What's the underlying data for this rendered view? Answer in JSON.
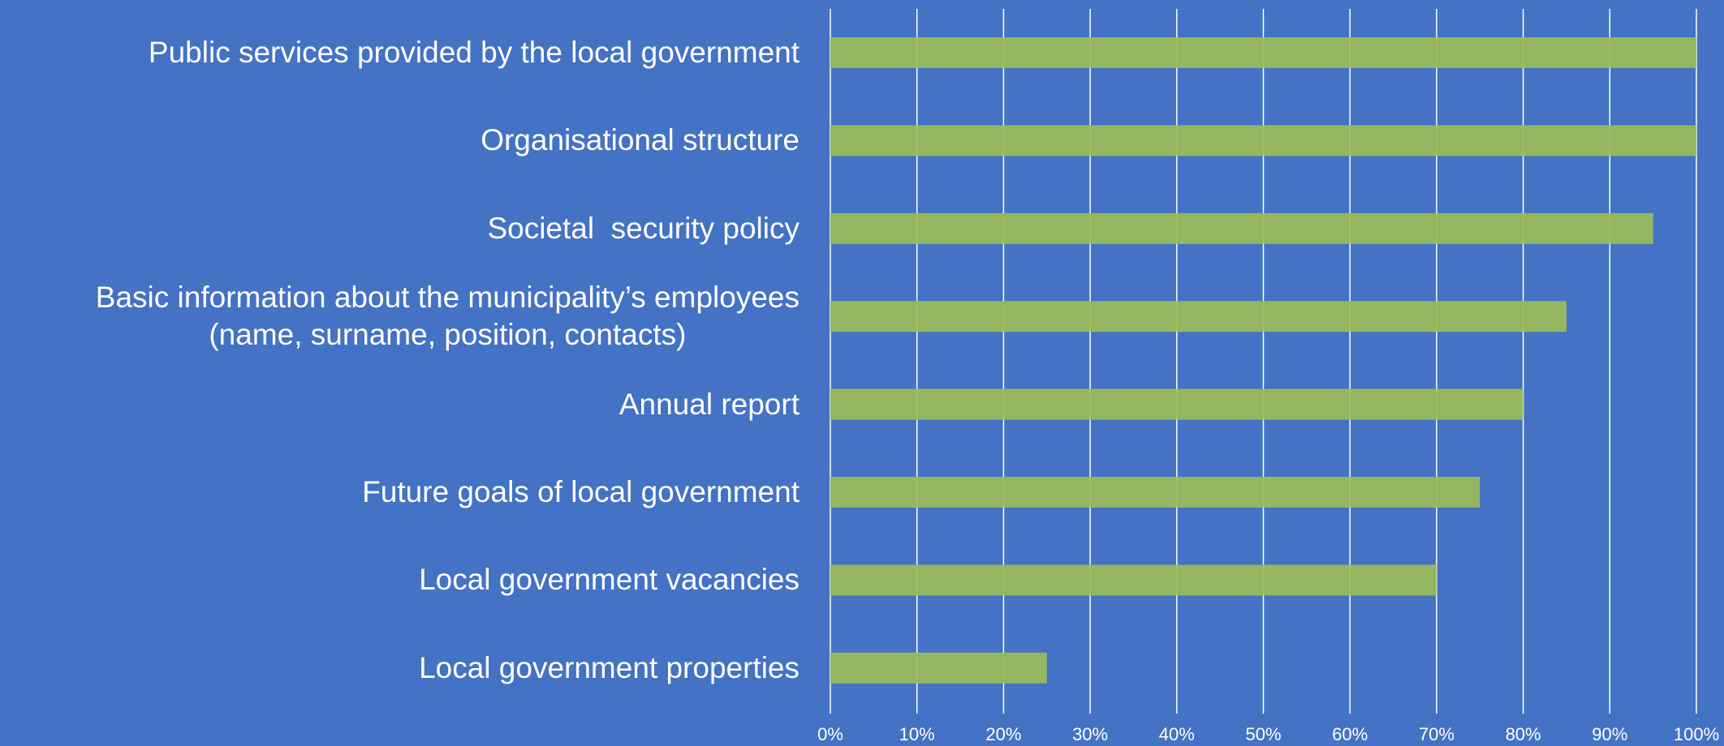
{
  "chart_data": {
    "type": "bar",
    "orientation": "horizontal",
    "categories": [
      "Public services provided by the local government",
      "Organisational structure",
      "Societal  security policy",
      "Basic information about the municipality’s employees\n(name, surname, position, contacts)",
      "Annual report",
      "Future goals of local government",
      "Local government vacancies",
      "Local government properties"
    ],
    "values": [
      100,
      100,
      95,
      85,
      80,
      75,
      70,
      25
    ],
    "color": "#9bbb59",
    "xlim": [
      0,
      100
    ],
    "xticks": [
      {
        "value": 0,
        "label": "0%"
      },
      {
        "value": 10,
        "label": "10%"
      },
      {
        "value": 20,
        "label": "20%"
      },
      {
        "value": 30,
        "label": "30%"
      },
      {
        "value": 40,
        "label": "40%"
      },
      {
        "value": 50,
        "label": "50%"
      },
      {
        "value": 60,
        "label": "60%"
      },
      {
        "value": 70,
        "label": "70%"
      },
      {
        "value": 80,
        "label": "80%"
      },
      {
        "value": 90,
        "label": "90%"
      },
      {
        "value": 100,
        "label": "100%"
      }
    ],
    "grid": true
  }
}
